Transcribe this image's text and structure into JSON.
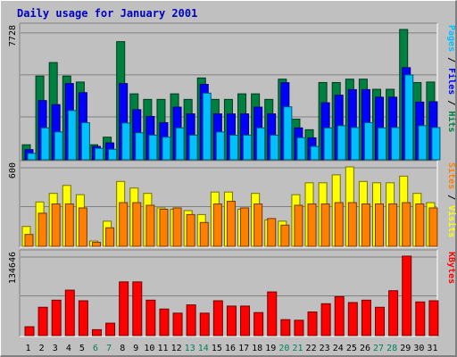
{
  "chart_data": {
    "type": "bar",
    "title": "Daily usage for January 2001",
    "colors": {
      "hits": "#008040",
      "files": "#0000ff",
      "pages": "#00c0ff",
      "visits": "#ffff00",
      "sites": "#ff8000",
      "kbytes": "#ff0000",
      "weekend_label": "#00805c",
      "weekday_label": "#000000",
      "title": "#0000c0"
    },
    "categories": [
      "1",
      "2",
      "3",
      "4",
      "5",
      "6",
      "7",
      "8",
      "9",
      "10",
      "11",
      "12",
      "13",
      "14",
      "15",
      "16",
      "17",
      "18",
      "19",
      "20",
      "21",
      "22",
      "23",
      "24",
      "25",
      "26",
      "27",
      "28",
      "29",
      "30",
      "31"
    ],
    "weekend_days": [
      "6",
      "7",
      "13",
      "14",
      "20",
      "21",
      "27",
      "28"
    ],
    "panels": [
      {
        "name": "usage",
        "ymax_label": "7728",
        "ylim": [
          0,
          7728
        ],
        "side_labels": [
          {
            "text": "Pages",
            "color": "#00c0ff"
          },
          {
            "text": " / ",
            "color": "#000000"
          },
          {
            "text": "Files",
            "color": "#0000ff"
          },
          {
            "text": " / ",
            "color": "#000000"
          },
          {
            "text": "Hits",
            "color": "#008040"
          }
        ],
        "series": [
          {
            "name": "Hits",
            "key": "hits",
            "values": [
              890,
              4964,
              5767,
              4964,
              4610,
              890,
              1340,
              7005,
              3910,
              3580,
              3580,
              3910,
              3580,
              4850,
              3580,
              3580,
              3910,
              3910,
              3580,
              4780,
              2410,
              1780,
              4580,
              4580,
              4780,
              4780,
              4180,
              4180,
              7728,
              4580,
              4610
            ]
          },
          {
            "name": "Files",
            "key": "files",
            "values": [
              600,
              3510,
              3270,
              4520,
              3980,
              790,
              1000,
              4520,
              2970,
              2570,
              2200,
              3120,
              2720,
              4470,
              2720,
              2720,
              2720,
              3120,
              2720,
              4570,
              1890,
              1300,
              3380,
              3830,
              4160,
              4160,
              3710,
              3710,
              5460,
              3420,
              3440
            ]
          },
          {
            "name": "Pages",
            "key": "pages",
            "values": [
              380,
              1890,
              1650,
              2920,
              2200,
              680,
              620,
              2180,
              1600,
              1460,
              1340,
              1890,
              1460,
              3950,
              1650,
              1460,
              1460,
              1890,
              1460,
              3140,
              1310,
              790,
              1890,
              2020,
              1910,
              2200,
              1890,
              1910,
              5030,
              2020,
              1910
            ]
          }
        ]
      },
      {
        "name": "visits",
        "ymax_label": "600",
        "ylim": [
          0,
          600
        ],
        "side_labels": [
          {
            "text": "Sites",
            "color": "#ff8000"
          },
          {
            "text": " / ",
            "color": "#000000"
          },
          {
            "text": "Visits",
            "color": "#ffff00"
          }
        ],
        "series": [
          {
            "name": "Visits",
            "key": "visits",
            "values": [
              150,
              335,
              400,
              460,
              390,
              40,
              190,
              490,
              440,
              400,
              290,
              280,
              270,
              240,
              410,
              410,
              280,
              400,
              200,
              190,
              390,
              480,
              480,
              540,
              600,
              490,
              480,
              480,
              530,
              400,
              330
            ]
          },
          {
            "name": "Sites",
            "key": "sites",
            "values": [
              90,
              250,
              320,
              320,
              290,
              30,
              140,
              330,
              330,
              310,
              280,
              290,
              240,
              180,
              320,
              340,
              290,
              320,
              210,
              160,
              310,
              320,
              320,
              330,
              330,
              320,
              320,
              320,
              330,
              320,
              290
            ]
          }
        ]
      },
      {
        "name": "kbytes",
        "ymax_label": "134646",
        "ylim": [
          0,
          134646
        ],
        "side_labels": [
          {
            "text": "KBytes",
            "color": "#ff0000"
          }
        ],
        "series": [
          {
            "name": "KBytes",
            "key": "kbytes",
            "values": [
              15000,
              48000,
              60000,
              77000,
              59000,
              10000,
              21000,
              91000,
              91000,
              60000,
              45000,
              38000,
              52000,
              38000,
              59000,
              50000,
              50000,
              39000,
              74000,
              27000,
              26000,
              40000,
              54000,
              66000,
              56000,
              60000,
              48000,
              76000,
              134646,
              57000,
              59000
            ]
          }
        ]
      }
    ]
  }
}
